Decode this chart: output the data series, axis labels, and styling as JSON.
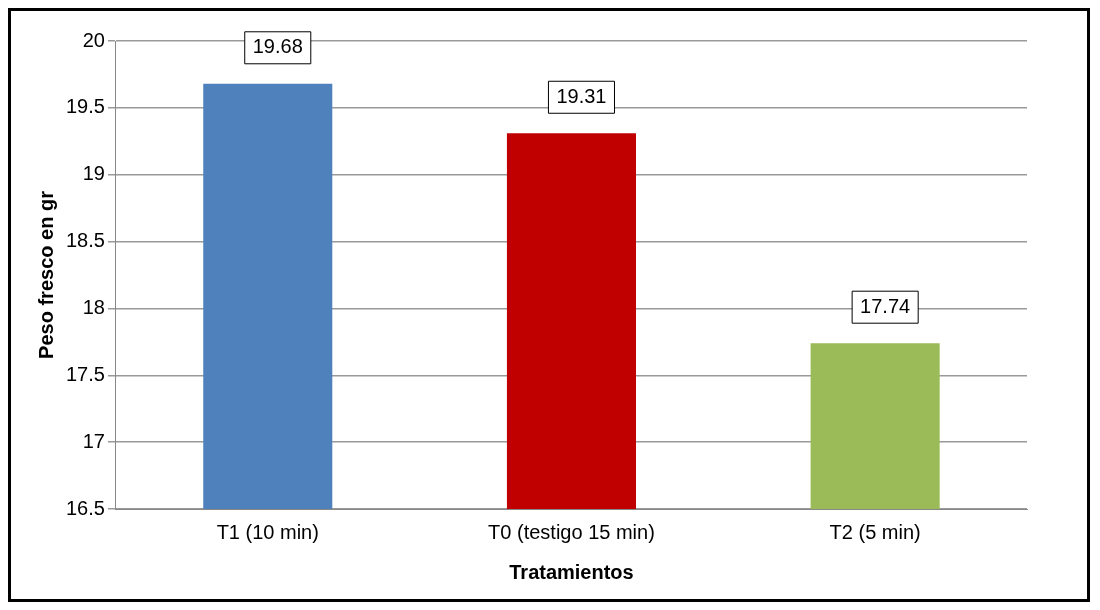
{
  "chart_data": {
    "type": "bar",
    "xlabel": "Tratamientos",
    "ylabel": "Peso fresco en gr",
    "categories": [
      "T1 (10 min)",
      "T0 (testigo 15 min)",
      "T2 (5 min)"
    ],
    "values": [
      19.68,
      19.31,
      17.74
    ],
    "colors": [
      "#4f81bd",
      "#c00000",
      "#9bbb59"
    ],
    "ylim": [
      16.5,
      20
    ],
    "yticks": [
      16.5,
      17,
      17.5,
      18,
      18.5,
      19,
      19.5,
      20
    ],
    "grid": "y",
    "data_labels": true,
    "legend": false
  }
}
